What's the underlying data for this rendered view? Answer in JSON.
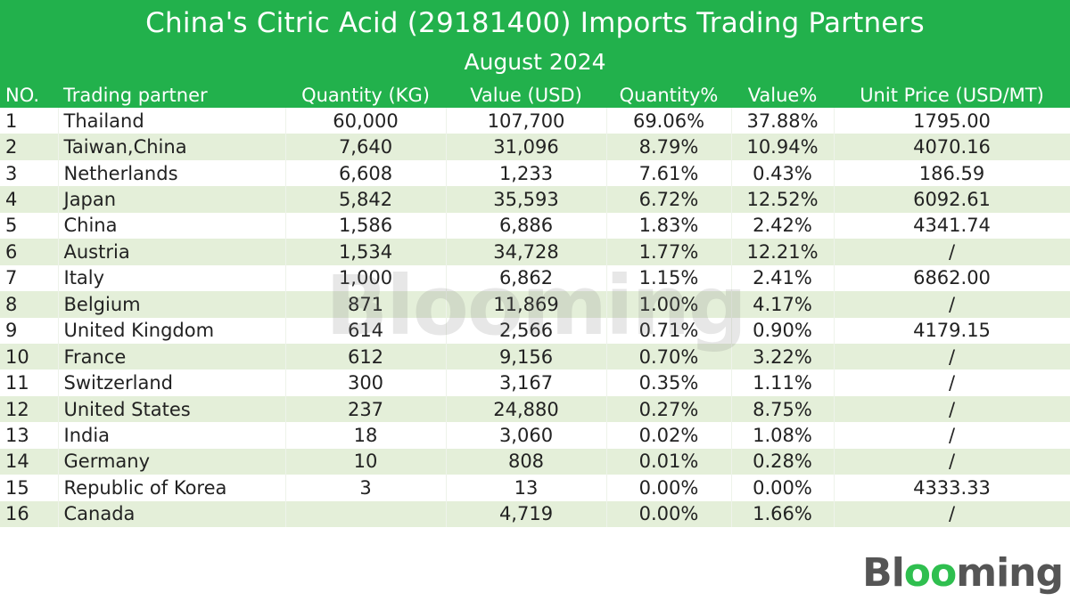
{
  "header": {
    "title": "China's Citric Acid (29181400) Imports Trading Partners",
    "subtitle": "August 2024"
  },
  "brand": {
    "logo_text": "Blooming",
    "watermark_text": "Blooming",
    "accent_color": "#22b14c",
    "alt_row_color": "#e4efd9"
  },
  "chart_data": {
    "type": "table",
    "title": "China's Citric Acid (29181400) Imports Trading Partners",
    "subtitle": "August 2024",
    "columns": [
      "NO.",
      "Trading partner",
      "Quantity (KG)",
      "Value (USD)",
      "Quantity%",
      "Value%",
      "Unit Price (USD/MT)"
    ],
    "rows": [
      [
        "1",
        "Thailand",
        "60,000",
        "107,700",
        "69.06%",
        "37.88%",
        "1795.00"
      ],
      [
        "2",
        "Taiwan,China",
        "7,640",
        "31,096",
        "8.79%",
        "10.94%",
        "4070.16"
      ],
      [
        "3",
        "Netherlands",
        "6,608",
        "1,233",
        "7.61%",
        "0.43%",
        "186.59"
      ],
      [
        "4",
        "Japan",
        "5,842",
        "35,593",
        "6.72%",
        "12.52%",
        "6092.61"
      ],
      [
        "5",
        "China",
        "1,586",
        "6,886",
        "1.83%",
        "2.42%",
        "4341.74"
      ],
      [
        "6",
        "Austria",
        "1,534",
        "34,728",
        "1.77%",
        "12.21%",
        "/"
      ],
      [
        "7",
        "Italy",
        "1,000",
        "6,862",
        "1.15%",
        "2.41%",
        "6862.00"
      ],
      [
        "8",
        "Belgium",
        "871",
        "11,869",
        "1.00%",
        "4.17%",
        "/"
      ],
      [
        "9",
        "United Kingdom",
        "614",
        "2,566",
        "0.71%",
        "0.90%",
        "4179.15"
      ],
      [
        "10",
        "France",
        "612",
        "9,156",
        "0.70%",
        "3.22%",
        "/"
      ],
      [
        "11",
        "Switzerland",
        "300",
        "3,167",
        "0.35%",
        "1.11%",
        "/"
      ],
      [
        "12",
        "United States",
        "237",
        "24,880",
        "0.27%",
        "8.75%",
        "/"
      ],
      [
        "13",
        "India",
        "18",
        "3,060",
        "0.02%",
        "1.08%",
        "/"
      ],
      [
        "14",
        "Germany",
        "10",
        "808",
        "0.01%",
        "0.28%",
        "/"
      ],
      [
        "15",
        "Republic of Korea",
        "3",
        "13",
        "0.00%",
        "0.00%",
        "4333.33"
      ],
      [
        "16",
        "Canada",
        "",
        "4,719",
        "0.00%",
        "1.66%",
        "/"
      ]
    ]
  }
}
